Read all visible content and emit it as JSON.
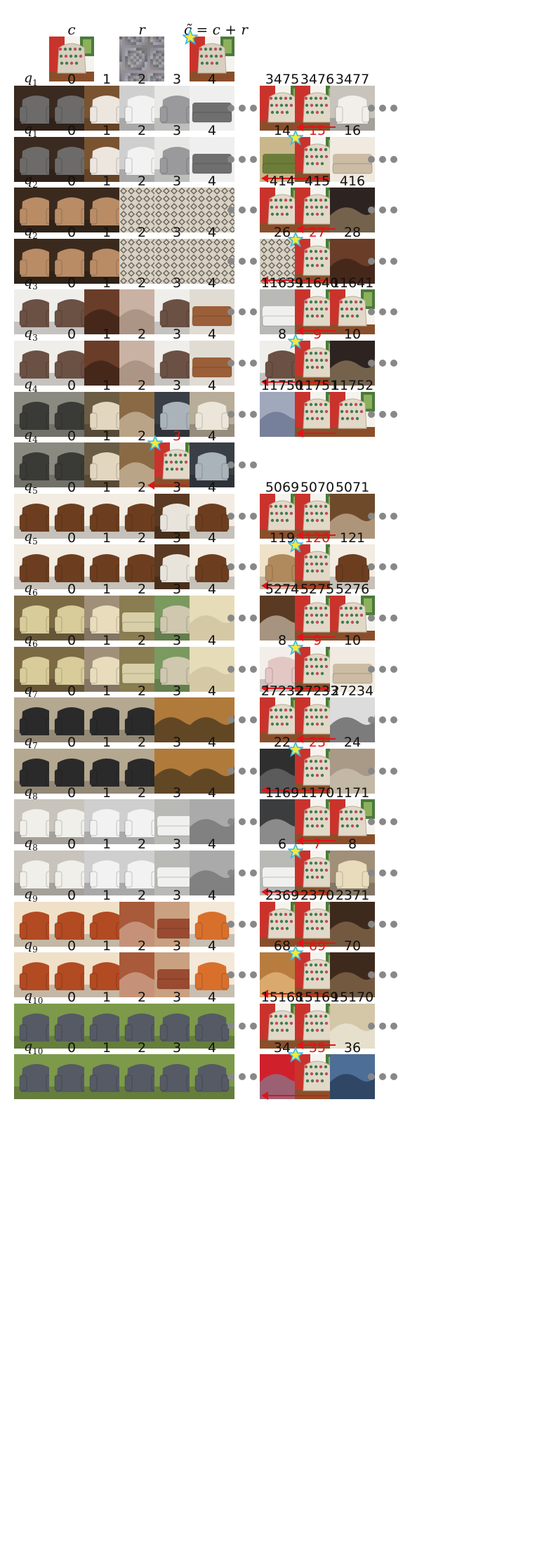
{
  "header": {
    "c_label": "c",
    "r_label": "r",
    "ctilde_label": "c̃ = c + r",
    "c_image": "patterned-armchair",
    "r_image": "noise",
    "ctilde_image": "patterned-armchair-perturbed"
  },
  "left_ranks": [
    "0",
    "1",
    "2",
    "3",
    "4"
  ],
  "colors": {
    "highlight": "#e0141a",
    "dots": "#888888",
    "star": "#f4e93a",
    "star_stroke": "#36b8e8"
  },
  "rows": [
    {
      "query_label": "q",
      "query_index": "1",
      "left": [
        "gray-armchair",
        "gray-armchair",
        "white-tufted-chair",
        "white-recliner",
        "gray-chair-room",
        "gray-sectional"
      ],
      "left_star": null,
      "right_ranks": [
        "3475",
        "3476",
        "3477"
      ],
      "right_images": [
        "patterned-chair",
        "patterned-chair",
        "white-armchair"
      ],
      "right_highlight": null,
      "show_right": true
    },
    {
      "query_label": "q",
      "query_index": "1",
      "left": [
        "gray-armchair",
        "gray-armchair",
        "white-tufted-chair",
        "white-recliner",
        "gray-chair-room",
        "gray-sectional"
      ],
      "left_star": null,
      "right_ranks": [
        "14",
        "15",
        "16"
      ],
      "right_images": [
        "green-sofa",
        "patterned-chair",
        "beige-sectional"
      ],
      "right_highlight": 1,
      "show_right": true
    },
    {
      "query_label": "q",
      "query_index": "2",
      "left": [
        "wicker-chairs",
        "wicker-chairs",
        "wicker-chairs",
        "lace-pattern",
        "lace-pattern",
        "lace-pattern"
      ],
      "left_star": null,
      "right_ranks": [
        "414",
        "415",
        "416"
      ],
      "right_images": [
        "patterned-chair",
        "patterned-chair",
        "dark-leather"
      ],
      "right_highlight": null,
      "show_right": true
    },
    {
      "query_label": "q",
      "query_index": "2",
      "left": [
        "wicker-chairs",
        "wicker-chairs",
        "wicker-chairs",
        "lace-pattern",
        "lace-pattern",
        "lace-pattern"
      ],
      "left_star": null,
      "right_ranks": [
        "26",
        "27",
        "28"
      ],
      "right_images": [
        "lace-pattern",
        "patterned-chair",
        "brown-leather"
      ],
      "right_highlight": 1,
      "show_right": true
    },
    {
      "query_label": "q",
      "query_index": "3",
      "left": [
        "dining-chairs",
        "dining-chairs",
        "brown-leather",
        "tufted-fabric",
        "dining-chairs",
        "leather-bench"
      ],
      "left_star": null,
      "right_ranks": [
        "11639",
        "11640",
        "11641"
      ],
      "right_images": [
        "white-sofa",
        "patterned-chair",
        "patterned-chair"
      ],
      "right_highlight": null,
      "show_right": true
    },
    {
      "query_label": "q",
      "query_index": "3",
      "left": [
        "dining-chairs",
        "dining-chairs",
        "brown-leather",
        "tufted-fabric",
        "dining-chairs",
        "leather-bench"
      ],
      "left_star": null,
      "right_ranks": [
        "8",
        "9",
        "10"
      ],
      "right_images": [
        "dining-chairs",
        "patterned-chair",
        "dark-leather"
      ],
      "right_highlight": 1,
      "show_right": true
    },
    {
      "query_label": "q",
      "query_index": "4",
      "left": [
        "wire-chairs",
        "wire-chairs",
        "cream-chair",
        "wood-curve",
        "person-chair",
        "white-chair"
      ],
      "left_star": null,
      "right_ranks": [
        "11750",
        "11751",
        "11752"
      ],
      "right_images": [
        "blue-object",
        "patterned-chair",
        "patterned-chair"
      ],
      "right_highlight": null,
      "show_right": true
    },
    {
      "query_label": "q",
      "query_index": "4",
      "left": [
        "wire-chairs",
        "wire-chairs",
        "cream-chair",
        "wood-curve",
        "patterned-chair",
        "person-chair"
      ],
      "left_star": 4,
      "left_highlight": 4,
      "right_ranks": [],
      "right_images": [],
      "right_highlight": null,
      "show_right": false
    },
    {
      "query_label": "q",
      "query_index": "5",
      "left": [
        "carved-wood",
        "carved-wood",
        "carved-wood",
        "carved-wood",
        "white-stool",
        "carved-wood"
      ],
      "left_star": null,
      "right_ranks": [
        "5069",
        "5070",
        "5071"
      ],
      "right_images": [
        "patterned-chair",
        "patterned-chair",
        "wood-cabinet"
      ],
      "right_highlight": null,
      "show_right": true
    },
    {
      "query_label": "q",
      "query_index": "5",
      "left": [
        "carved-wood",
        "carved-wood",
        "carved-wood",
        "carved-wood",
        "white-stool",
        "carved-wood"
      ],
      "left_star": null,
      "right_ranks": [
        "119",
        "120",
        "121"
      ],
      "right_images": [
        "wood-chairs",
        "patterned-chair",
        "carved-wood"
      ],
      "right_highlight": 1,
      "show_right": true
    },
    {
      "query_label": "q",
      "query_index": "6",
      "left": [
        "cream-armchair",
        "cream-armchair",
        "cream-recliner",
        "cream-sofa",
        "cream-chair-room",
        "cream-tufted"
      ],
      "left_star": null,
      "right_ranks": [
        "5274",
        "5275",
        "5276"
      ],
      "right_images": [
        "wood-table",
        "patterned-chair",
        "patterned-chair"
      ],
      "right_highlight": null,
      "show_right": true
    },
    {
      "query_label": "q",
      "query_index": "6",
      "left": [
        "cream-armchair",
        "cream-armchair",
        "cream-recliner",
        "cream-sofa",
        "cream-chair-room",
        "cream-tufted"
      ],
      "left_star": null,
      "right_ranks": [
        "8",
        "9",
        "10"
      ],
      "right_images": [
        "pink-chair",
        "patterned-chair",
        "beige-sectional"
      ],
      "right_highlight": 1,
      "show_right": true
    },
    {
      "query_label": "q",
      "query_index": "7",
      "left": [
        "director-chair",
        "director-chair",
        "director-chair",
        "director-chair",
        "tan-leather",
        "tan-leather"
      ],
      "left_star": null,
      "right_ranks": [
        "27232",
        "27233",
        "27234"
      ],
      "right_images": [
        "patterned-chair",
        "patterned-chair",
        "stapler"
      ],
      "right_highlight": null,
      "show_right": true
    },
    {
      "query_label": "q",
      "query_index": "7",
      "left": [
        "director-chair",
        "director-chair",
        "director-chair",
        "director-chair",
        "tan-leather",
        "tan-leather"
      ],
      "left_star": null,
      "right_ranks": [
        "22",
        "23",
        "24"
      ],
      "right_images": [
        "dark-metal",
        "patterned-chair",
        "glass-table"
      ],
      "right_highlight": 1,
      "show_right": true
    },
    {
      "query_label": "q",
      "query_index": "8",
      "left": [
        "white-armchair",
        "white-armchair",
        "white-recliner",
        "white-recliner",
        "white-sofa",
        "white-tufted"
      ],
      "left_star": null,
      "right_ranks": [
        "1169",
        "1170",
        "1171"
      ],
      "right_images": [
        "chalkboard",
        "patterned-chair",
        "patterned-chair"
      ],
      "right_highlight": null,
      "show_right": true
    },
    {
      "query_label": "q",
      "query_index": "8",
      "left": [
        "white-armchair",
        "white-armchair",
        "white-recliner",
        "white-recliner",
        "white-sofa",
        "white-tufted"
      ],
      "left_star": null,
      "right_ranks": [
        "6",
        "7",
        "8"
      ],
      "right_images": [
        "white-sofa",
        "patterned-chair",
        "cream-recliner"
      ],
      "right_highlight": 1,
      "show_right": true
    },
    {
      "query_label": "q",
      "query_index": "9",
      "left": [
        "red-armchair",
        "red-armchair",
        "red-armchair",
        "red-fabric",
        "red-curve",
        "orange-chair"
      ],
      "left_star": null,
      "right_ranks": [
        "2369",
        "2370",
        "2371"
      ],
      "right_images": [
        "patterned-chair",
        "patterned-chair",
        "dark-wood"
      ],
      "right_highlight": null,
      "show_right": true
    },
    {
      "query_label": "q",
      "query_index": "9",
      "left": [
        "red-armchair",
        "red-armchair",
        "red-armchair",
        "red-fabric",
        "red-curve",
        "orange-chair"
      ],
      "left_star": null,
      "right_ranks": [
        "68",
        "69",
        "70"
      ],
      "right_images": [
        "wood-sign",
        "patterned-chair",
        "dark-wood"
      ],
      "right_highlight": 1,
      "show_right": true
    },
    {
      "query_label": "q",
      "query_index": "10",
      "left": [
        "lawn-chair",
        "lawn-chair",
        "lawn-chair",
        "lawn-chair",
        "lawn-chair",
        "lawn-chair"
      ],
      "left_star": null,
      "right_ranks": [
        "15168",
        "15169",
        "15170"
      ],
      "right_images": [
        "patterned-chair",
        "patterned-chair",
        "tan-shirt"
      ],
      "right_highlight": null,
      "show_right": true
    },
    {
      "query_label": "q",
      "query_index": "10",
      "left": [
        "lawn-chair",
        "lawn-chair",
        "lawn-chair",
        "lawn-chair",
        "lawn-chair",
        "lawn-chair"
      ],
      "left_star": null,
      "right_ranks": [
        "34",
        "35",
        "36"
      ],
      "right_images": [
        "red-table",
        "patterned-chair",
        "blue-leather"
      ],
      "right_highlight": 1,
      "show_right": true
    }
  ]
}
